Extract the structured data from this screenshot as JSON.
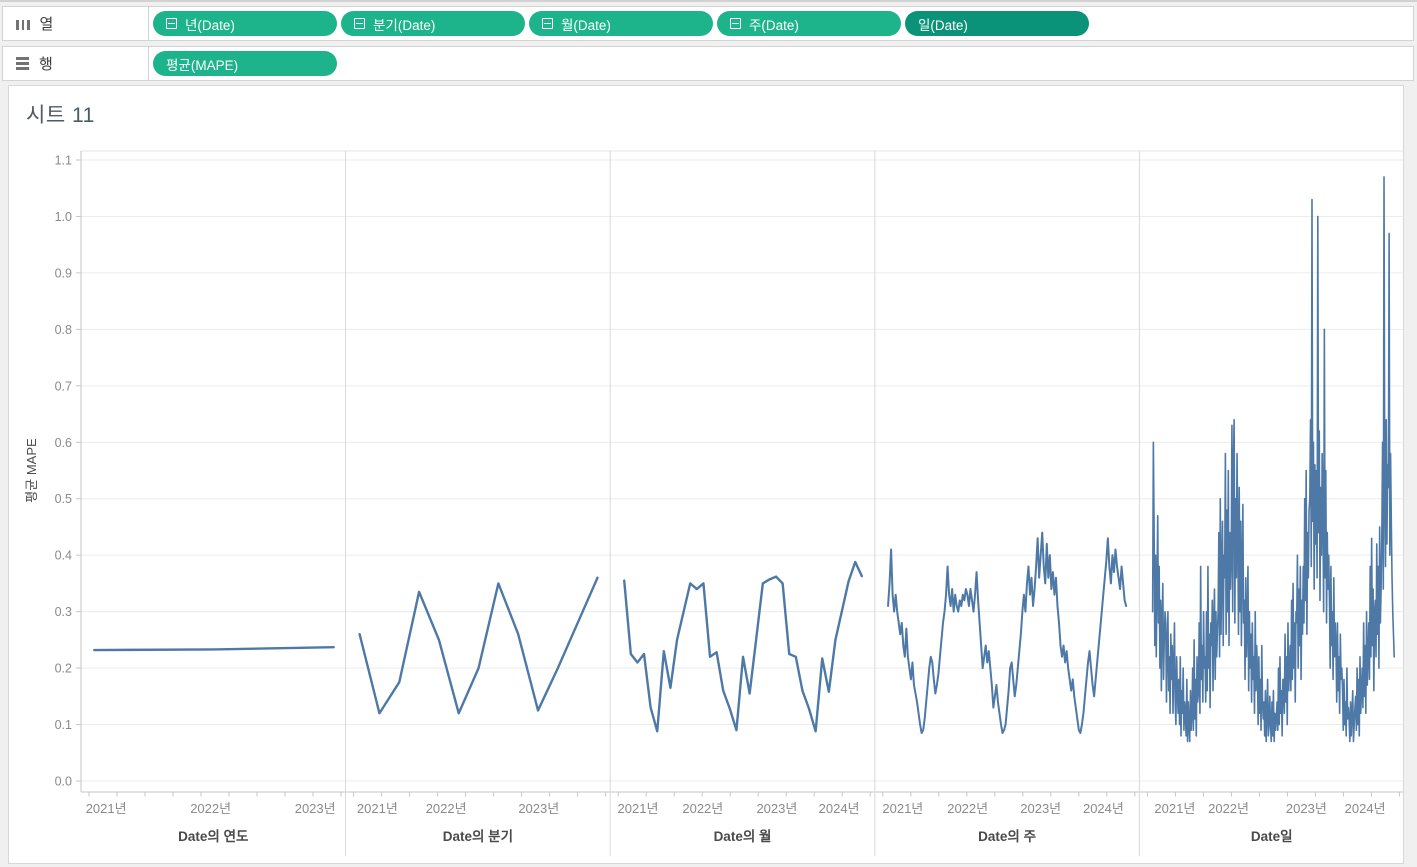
{
  "shelves": {
    "columns": {
      "label": "열",
      "pills": [
        {
          "label": "년(Date)",
          "has_minus": true,
          "dark": false
        },
        {
          "label": "분기(Date)",
          "has_minus": true,
          "dark": false
        },
        {
          "label": "월(Date)",
          "has_minus": true,
          "dark": false
        },
        {
          "label": "주(Date)",
          "has_minus": true,
          "dark": false
        },
        {
          "label": "일(Date)",
          "has_minus": false,
          "dark": true
        }
      ]
    },
    "rows": {
      "label": "행",
      "pills": [
        {
          "label": "평균(MAPE)",
          "has_minus": false,
          "dark": false
        }
      ]
    }
  },
  "sheet": {
    "title": "시트 11"
  },
  "colors": {
    "pill_green": "#1db48c",
    "pill_green_dark": "#0a9378",
    "pill_text": "#ffffff",
    "line": "#4e79a7",
    "gridline": "#ececec",
    "axis_line": "#c6c6c6",
    "panel_divider": "#d9d9d9",
    "tick_label": "#8a8a8a",
    "axis_title": "#4a4a4a",
    "sheet_title": "#4e5a64"
  },
  "chart_data": {
    "type": "line",
    "title": "시트 11",
    "grid": true,
    "legend": "none",
    "line_color": "#4e79a7",
    "y_axis": {
      "title": "평균 MAPE",
      "min": 0.0,
      "max": 1.1,
      "tick_step": 0.1,
      "tick_labels": [
        "0.0",
        "0.1",
        "0.2",
        "0.3",
        "0.4",
        "0.5",
        "0.6",
        "0.7",
        "0.8",
        "0.9",
        "1.0",
        "1.1"
      ]
    },
    "panels": [
      {
        "id": "year",
        "x_axis_title": "Date의 연도",
        "x_ticks": [
          {
            "label": "2021년",
            "f": 0.095
          },
          {
            "label": "2022년",
            "f": 0.49
          },
          {
            "label": "2023년",
            "f": 0.885
          }
        ],
        "f_start": 0.05,
        "f_end": 0.955,
        "values": [
          0.232,
          0.233,
          0.237
        ]
      },
      {
        "id": "quarter",
        "x_axis_title": "Date의 분기",
        "x_ticks": [
          {
            "label": "2021년",
            "f": 0.12
          },
          {
            "label": "2022년",
            "f": 0.38
          },
          {
            "label": "2023년",
            "f": 0.73
          }
        ],
        "f_start": 0.053,
        "f_end": 0.952,
        "values": [
          0.26,
          0.12,
          0.175,
          0.335,
          0.25,
          0.12,
          0.2,
          0.35,
          0.26,
          0.125,
          0.2,
          0.28,
          0.36
        ]
      },
      {
        "id": "month",
        "x_axis_title": "Date의 월",
        "x_ticks": [
          {
            "label": "2021년",
            "f": 0.105
          },
          {
            "label": "2022년",
            "f": 0.35
          },
          {
            "label": "2023년",
            "f": 0.63
          },
          {
            "label": "2024년",
            "f": 0.865
          }
        ],
        "f_start": 0.053,
        "f_end": 0.951,
        "values": [
          0.355,
          0.225,
          0.21,
          0.225,
          0.13,
          0.088,
          0.23,
          0.165,
          0.25,
          0.3,
          0.35,
          0.34,
          0.35,
          0.22,
          0.228,
          0.16,
          0.128,
          0.09,
          0.22,
          0.155,
          0.252,
          0.35,
          0.357,
          0.362,
          0.35,
          0.225,
          0.22,
          0.16,
          0.128,
          0.088,
          0.217,
          0.158,
          0.25,
          0.302,
          0.354,
          0.388,
          0.363
        ]
      },
      {
        "id": "week",
        "x_axis_title": "Date의 주",
        "x_ticks": [
          {
            "label": "2021년",
            "f": 0.106
          },
          {
            "label": "2022년",
            "f": 0.351
          },
          {
            "label": "2023년",
            "f": 0.627
          },
          {
            "label": "2024년",
            "f": 0.864
          }
        ],
        "f_start": 0.05,
        "f_end": 0.95,
        "values": [
          0.31,
          0.35,
          0.41,
          0.33,
          0.3,
          0.33,
          0.3,
          0.28,
          0.26,
          0.28,
          0.24,
          0.22,
          0.27,
          0.22,
          0.2,
          0.18,
          0.21,
          0.17,
          0.155,
          0.14,
          0.12,
          0.1,
          0.085,
          0.09,
          0.11,
          0.14,
          0.17,
          0.2,
          0.22,
          0.21,
          0.18,
          0.155,
          0.17,
          0.19,
          0.22,
          0.25,
          0.28,
          0.3,
          0.33,
          0.38,
          0.33,
          0.31,
          0.34,
          0.3,
          0.33,
          0.31,
          0.3,
          0.32,
          0.31,
          0.33,
          0.32,
          0.34,
          0.33,
          0.31,
          0.34,
          0.32,
          0.3,
          0.33,
          0.37,
          0.32,
          0.28,
          0.24,
          0.2,
          0.22,
          0.24,
          0.21,
          0.23,
          0.2,
          0.17,
          0.13,
          0.15,
          0.17,
          0.14,
          0.12,
          0.1,
          0.085,
          0.09,
          0.1,
          0.13,
          0.16,
          0.2,
          0.21,
          0.18,
          0.15,
          0.17,
          0.2,
          0.23,
          0.26,
          0.3,
          0.33,
          0.3,
          0.35,
          0.38,
          0.33,
          0.36,
          0.31,
          0.34,
          0.38,
          0.43,
          0.36,
          0.4,
          0.44,
          0.38,
          0.35,
          0.42,
          0.36,
          0.4,
          0.34,
          0.37,
          0.33,
          0.36,
          0.31,
          0.28,
          0.24,
          0.22,
          0.24,
          0.21,
          0.23,
          0.2,
          0.18,
          0.16,
          0.18,
          0.15,
          0.13,
          0.11,
          0.09,
          0.085,
          0.1,
          0.12,
          0.15,
          0.18,
          0.21,
          0.23,
          0.2,
          0.17,
          0.15,
          0.18,
          0.21,
          0.24,
          0.27,
          0.3,
          0.33,
          0.36,
          0.39,
          0.43,
          0.38,
          0.35,
          0.4,
          0.37,
          0.41,
          0.38,
          0.36,
          0.34,
          0.38,
          0.35,
          0.32,
          0.31
        ]
      },
      {
        "id": "day",
        "x_axis_title": "Date일",
        "x_ticks": [
          {
            "label": "2021년",
            "f": 0.134
          },
          {
            "label": "2022년",
            "f": 0.337
          },
          {
            "label": "2023년",
            "f": 0.631
          },
          {
            "label": "2024년",
            "f": 0.853
          }
        ],
        "f_start": 0.05,
        "f_end": 0.963,
        "values": [
          0.3,
          0.6,
          0.45,
          0.24,
          0.4,
          0.22,
          0.35,
          0.47,
          0.28,
          0.38,
          0.2,
          0.32,
          0.16,
          0.28,
          0.35,
          0.18,
          0.25,
          0.3,
          0.28,
          0.14,
          0.24,
          0.3,
          0.16,
          0.22,
          0.12,
          0.26,
          0.18,
          0.24,
          0.12,
          0.2,
          0.28,
          0.14,
          0.1,
          0.22,
          0.16,
          0.12,
          0.18,
          0.1,
          0.22,
          0.08,
          0.16,
          0.12,
          0.2,
          0.09,
          0.14,
          0.12,
          0.08,
          0.18,
          0.07,
          0.14,
          0.1,
          0.07,
          0.16,
          0.09,
          0.12,
          0.2,
          0.09,
          0.25,
          0.11,
          0.18,
          0.08,
          0.22,
          0.14,
          0.16,
          0.28,
          0.12,
          0.38,
          0.18,
          0.24,
          0.14,
          0.3,
          0.2,
          0.22,
          0.14,
          0.3,
          0.16,
          0.38,
          0.2,
          0.26,
          0.13,
          0.28,
          0.24,
          0.32,
          0.16,
          0.28,
          0.34,
          0.18,
          0.3,
          0.22,
          0.26,
          0.3,
          0.44,
          0.22,
          0.5,
          0.26,
          0.38,
          0.46,
          0.24,
          0.4,
          0.36,
          0.58,
          0.26,
          0.48,
          0.3,
          0.55,
          0.24,
          0.44,
          0.34,
          0.4,
          0.63,
          0.3,
          0.56,
          0.64,
          0.28,
          0.5,
          0.36,
          0.58,
          0.44,
          0.26,
          0.52,
          0.3,
          0.46,
          0.24,
          0.38,
          0.49,
          0.28,
          0.32,
          0.18,
          0.36,
          0.22,
          0.28,
          0.38,
          0.16,
          0.3,
          0.2,
          0.26,
          0.14,
          0.28,
          0.18,
          0.22,
          0.12,
          0.3,
          0.16,
          0.24,
          0.2,
          0.1,
          0.22,
          0.12,
          0.18,
          0.09,
          0.24,
          0.14,
          0.11,
          0.14,
          0.08,
          0.16,
          0.07,
          0.12,
          0.18,
          0.08,
          0.1,
          0.15,
          0.1,
          0.07,
          0.14,
          0.08,
          0.16,
          0.07,
          0.12,
          0.09,
          0.11,
          0.14,
          0.09,
          0.2,
          0.1,
          0.22,
          0.12,
          0.16,
          0.08,
          0.18,
          0.18,
          0.12,
          0.26,
          0.14,
          0.22,
          0.1,
          0.28,
          0.16,
          0.2,
          0.24,
          0.16,
          0.32,
          0.18,
          0.35,
          0.2,
          0.28,
          0.14,
          0.3,
          0.28,
          0.4,
          0.2,
          0.34,
          0.24,
          0.38,
          0.18,
          0.32,
          0.26,
          0.38,
          0.28,
          0.5,
          0.32,
          0.55,
          0.26,
          0.44,
          0.36,
          0.48,
          0.5,
          0.64,
          0.38,
          1.03,
          0.46,
          0.6,
          0.34,
          0.56,
          0.42,
          0.55,
          0.36,
          1.0,
          0.44,
          0.62,
          0.32,
          0.52,
          0.4,
          0.58,
          0.48,
          0.3,
          0.8,
          0.36,
          0.55,
          0.28,
          0.44,
          0.34,
          0.4,
          0.32,
          0.2,
          0.38,
          0.24,
          0.3,
          0.18,
          0.36,
          0.22,
          0.28,
          0.24,
          0.14,
          0.28,
          0.16,
          0.22,
          0.12,
          0.26,
          0.18,
          0.2,
          0.16,
          0.09,
          0.18,
          0.1,
          0.14,
          0.08,
          0.2,
          0.11,
          0.13,
          0.11,
          0.07,
          0.14,
          0.08,
          0.12,
          0.16,
          0.07,
          0.1,
          0.13,
          0.15,
          0.09,
          0.2,
          0.1,
          0.18,
          0.08,
          0.22,
          0.12,
          0.16,
          0.2,
          0.13,
          0.28,
          0.15,
          0.24,
          0.12,
          0.3,
          0.17,
          0.22,
          0.28,
          0.18,
          0.38,
          0.22,
          0.43,
          0.24,
          0.34,
          0.16,
          0.3,
          0.32,
          0.22,
          0.42,
          0.26,
          0.38,
          0.2,
          0.45,
          0.28,
          0.34,
          0.44,
          0.6,
          0.34,
          1.07,
          0.5,
          0.38,
          0.64,
          0.42,
          0.56,
          0.52,
          0.97,
          0.4,
          0.58,
          0.46,
          0.36,
          0.3,
          0.26,
          0.22
        ]
      }
    ]
  }
}
